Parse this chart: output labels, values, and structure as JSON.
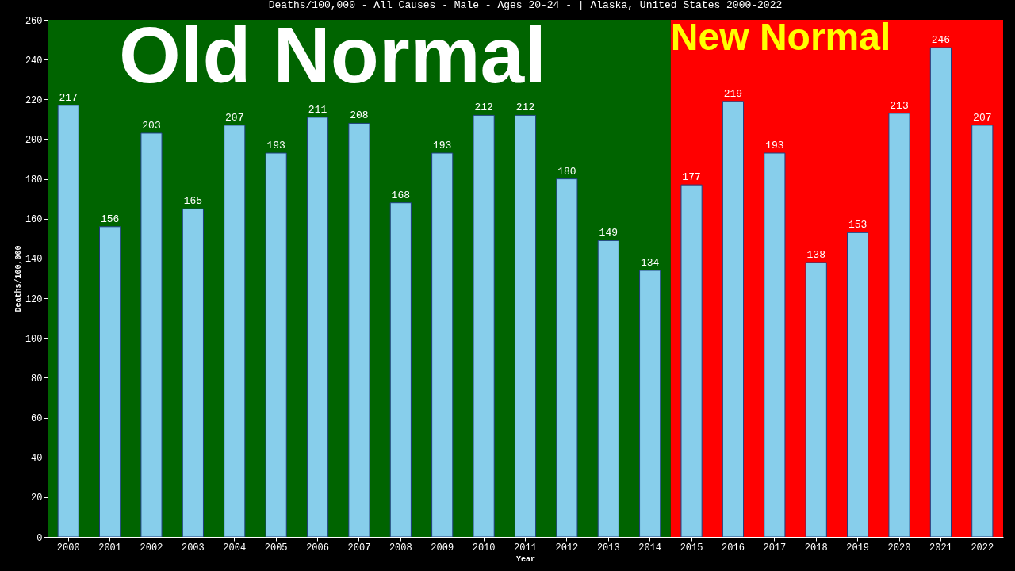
{
  "chart_data": {
    "type": "bar",
    "title": "Deaths/100,000 - All Causes - Male - Ages 20-24 -  | Alaska, United States 2000-2022",
    "xlabel": "Year",
    "ylabel": "Deaths/100,000",
    "categories": [
      "2000",
      "2001",
      "2002",
      "2003",
      "2004",
      "2005",
      "2006",
      "2007",
      "2008",
      "2009",
      "2010",
      "2011",
      "2012",
      "2013",
      "2014",
      "2015",
      "2016",
      "2017",
      "2018",
      "2019",
      "2020",
      "2021",
      "2022"
    ],
    "values": [
      217,
      156,
      203,
      165,
      207,
      193,
      211,
      208,
      168,
      193,
      212,
      212,
      180,
      149,
      134,
      177,
      219,
      193,
      138,
      153,
      213,
      246,
      207
    ],
    "color": "#87ceeb",
    "ylim": [
      0,
      260
    ],
    "yticks": [
      0,
      20,
      40,
      60,
      80,
      100,
      120,
      140,
      160,
      180,
      200,
      220,
      240,
      260
    ],
    "grid": false,
    "data_labels": true,
    "bands": [
      {
        "axis": "x",
        "from": "2000",
        "to": "2014",
        "label": "Old Normal",
        "color": "#006400"
      },
      {
        "axis": "x",
        "from": "2015",
        "to": "2022",
        "label": "New Normal",
        "color": "#ff0000"
      }
    ]
  }
}
